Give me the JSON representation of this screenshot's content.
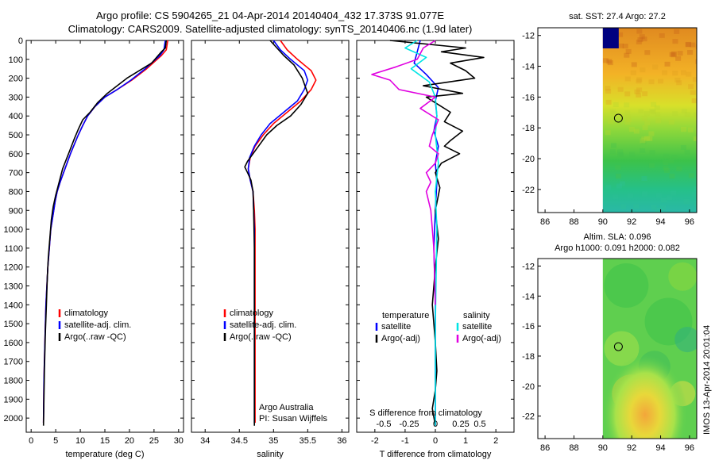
{
  "header": {
    "line1": "Argo profile: CS 5904265_21 04-Apr-2014 20140404_432 17.373S 91.077E",
    "line2": "Climatology: CARS2009. Satellite-adjusted climatology: synTS_20140406.nc (1.9d later)"
  },
  "colors": {
    "climatology": "#ff0000",
    "satellite": "#0000ff",
    "argo": "#000000",
    "sat_diff_s": "#00e5e5",
    "argo_diff_s": "#e000e0"
  },
  "chart_data": [
    {
      "type": "line",
      "name": "temperature-profile",
      "xlabel": "temperature (deg C)",
      "ylabel": "",
      "xlim": [
        -1,
        31
      ],
      "ylim": [
        2075,
        0
      ],
      "xticks": [
        0,
        5,
        10,
        15,
        20,
        25,
        30
      ],
      "yticks": [
        0,
        100,
        200,
        300,
        400,
        500,
        600,
        700,
        800,
        900,
        1000,
        1100,
        1200,
        1300,
        1400,
        1500,
        1600,
        1700,
        1800,
        1900,
        2000
      ],
      "legend": {
        "position": "center-right",
        "entries": [
          "climatology",
          "satellite-adj. clim.",
          "Argo(..raw -QC)"
        ]
      },
      "series": [
        {
          "name": "climatology",
          "color": "#ff0000",
          "x": [
            27.8,
            27.5,
            26.5,
            23.5,
            20.5,
            17.5,
            15.0,
            13.0,
            11.5,
            10.5,
            9.6,
            8.8,
            8.0,
            7.3,
            6.6,
            5.9,
            5.3,
            4.9,
            4.6,
            4.3,
            4.0,
            3.7,
            3.4,
            3.2,
            3.0,
            2.8,
            2.6,
            2.5
          ],
          "y": [
            0,
            50,
            80,
            150,
            210,
            260,
            300,
            350,
            400,
            450,
            500,
            550,
            600,
            650,
            700,
            750,
            800,
            850,
            900,
            950,
            1000,
            1100,
            1200,
            1300,
            1400,
            1600,
            1800,
            2025
          ]
        },
        {
          "name": "satellite-adj. clim.",
          "color": "#0000ff",
          "x": [
            27.3,
            27.0,
            26.2,
            23.2,
            20.3,
            17.5,
            15.0,
            13.0,
            11.5,
            10.5,
            9.6,
            8.8,
            8.0,
            7.3,
            6.6,
            5.9,
            5.3,
            4.9,
            4.6,
            4.3,
            4.0,
            3.7,
            3.4,
            3.2,
            3.0,
            2.8,
            2.6,
            2.5
          ],
          "y": [
            0,
            50,
            80,
            150,
            210,
            260,
            300,
            350,
            400,
            450,
            500,
            550,
            600,
            650,
            700,
            750,
            800,
            850,
            900,
            950,
            1000,
            1100,
            1200,
            1300,
            1400,
            1600,
            1800,
            2025
          ]
        },
        {
          "name": "Argo(..raw -QC)",
          "color": "#000000",
          "x": [
            27.5,
            27.3,
            26.5,
            24.5,
            22.0,
            19.5,
            17.5,
            15.5,
            13.5,
            12.0,
            10.5,
            9.6,
            8.8,
            7.9,
            7.0,
            6.4,
            5.9,
            5.4,
            5.0,
            4.5,
            4.1,
            3.8,
            3.5,
            3.3,
            3.1,
            2.9,
            2.7,
            2.6,
            2.5
          ],
          "y": [
            0,
            40,
            60,
            120,
            160,
            200,
            240,
            280,
            330,
            380,
            420,
            470,
            520,
            580,
            640,
            680,
            730,
            780,
            820,
            880,
            950,
            1050,
            1150,
            1250,
            1400,
            1550,
            1750,
            1900,
            2040
          ]
        }
      ]
    },
    {
      "type": "line",
      "name": "salinity-profile",
      "xlabel": "salinity",
      "ylabel": "",
      "xlim": [
        33.8,
        36.1
      ],
      "ylim": [
        2075,
        0
      ],
      "xticks": [
        34,
        34.5,
        35,
        35.5,
        36
      ],
      "legend": {
        "position": "center-right",
        "entries": [
          "climatology",
          "satellite-adj. clim.",
          "Argo(..raw -QC)"
        ]
      },
      "annotations": [
        "Argo Australia",
        "PI: Susan Wijffels"
      ],
      "series": [
        {
          "name": "climatology",
          "color": "#ff0000",
          "x": [
            35.1,
            35.2,
            35.35,
            35.55,
            35.62,
            35.55,
            35.4,
            35.2,
            35.0,
            34.85,
            34.73,
            34.66,
            34.63,
            34.66,
            34.7,
            34.72,
            34.73,
            34.73,
            34.73,
            34.73,
            34.73
          ],
          "y": [
            0,
            50,
            100,
            160,
            210,
            260,
            320,
            380,
            440,
            500,
            560,
            620,
            680,
            740,
            800,
            900,
            1000,
            1200,
            1500,
            1800,
            2025
          ]
        },
        {
          "name": "satellite-adj. clim.",
          "color": "#0000ff",
          "x": [
            35.0,
            35.1,
            35.25,
            35.45,
            35.5,
            35.45,
            35.35,
            35.15,
            34.95,
            34.82,
            34.72,
            34.65,
            34.63,
            34.66,
            34.7,
            34.71,
            34.72,
            34.72,
            34.72,
            34.72,
            34.72
          ],
          "y": [
            0,
            50,
            100,
            160,
            210,
            260,
            320,
            380,
            440,
            500,
            560,
            620,
            680,
            740,
            800,
            900,
            1000,
            1200,
            1500,
            1800,
            2025
          ]
        },
        {
          "name": "Argo(..raw -QC)",
          "color": "#000000",
          "x": [
            34.95,
            35.05,
            35.15,
            35.3,
            35.42,
            35.5,
            35.4,
            35.25,
            35.05,
            34.9,
            34.78,
            34.68,
            34.62,
            34.58,
            34.62,
            34.67,
            34.7,
            34.71,
            34.72,
            34.72,
            34.72,
            34.72
          ],
          "y": [
            0,
            40,
            80,
            130,
            200,
            280,
            340,
            400,
            450,
            500,
            560,
            610,
            640,
            670,
            700,
            740,
            800,
            900,
            1100,
            1400,
            1800,
            2040
          ]
        }
      ]
    },
    {
      "type": "line",
      "name": "difference-profile",
      "xlabel": "T difference from climatology",
      "xlabel_top": "S difference from climatology",
      "xlim": [
        -2.6,
        2.6
      ],
      "ylim": [
        2075,
        0
      ],
      "xticks": [
        -2,
        -1,
        0,
        1,
        2
      ],
      "xticks_s_labels": [
        "-0.5",
        "-0.25",
        "0",
        "0.25",
        "0.5"
      ],
      "xticks_s_pos": [
        -2,
        -1,
        0,
        1,
        2
      ],
      "legend": {
        "position": "center",
        "groups": [
          "temperature",
          "salinity"
        ],
        "entries": [
          "satellite",
          "Argo(-adj)",
          "satellite",
          "Argo(-adj)"
        ]
      },
      "series": [
        {
          "name": "satellite",
          "color": "#0000ff",
          "x": [
            -0.5,
            -0.6,
            -0.7,
            -0.3,
            0.1,
            0.0,
            0.05,
            -0.05,
            0.1,
            0.0,
            0.05,
            0.0,
            -0.05,
            0.0,
            0.0,
            0.0,
            0.0
          ],
          "y": [
            0,
            60,
            120,
            180,
            250,
            320,
            400,
            480,
            560,
            650,
            750,
            900,
            1100,
            1400,
            1700,
            1950,
            2040
          ]
        },
        {
          "name": "Argo(-adj)",
          "color": "#000000",
          "x": [
            -1.5,
            1.0,
            0.2,
            1.6,
            0.5,
            1.0,
            1.3,
            -0.4,
            0.9,
            -0.3,
            0.0,
            0.5,
            0.3,
            0.9,
            0.5,
            0.3,
            0.8,
            0.2,
            0.0,
            0.15,
            0.0,
            0.1,
            0.0,
            -0.1,
            0.0,
            0.05,
            0.0,
            -0.1,
            0.0
          ],
          "y": [
            0,
            40,
            60,
            90,
            120,
            160,
            200,
            240,
            280,
            300,
            330,
            380,
            430,
            480,
            530,
            560,
            600,
            650,
            700,
            780,
            900,
            1050,
            1200,
            1400,
            1600,
            1750,
            1850,
            1950,
            2040
          ]
        },
        {
          "name": "satellite",
          "color": "#00e5e5",
          "x": [
            -0.6,
            -1.0,
            -0.3,
            -0.8,
            -0.2,
            0.0,
            0.05,
            0.0,
            0.1,
            0.0,
            0.05,
            0.0,
            0.0
          ],
          "y": [
            0,
            40,
            90,
            150,
            220,
            300,
            400,
            500,
            650,
            800,
            1000,
            1500,
            2040
          ]
        },
        {
          "name": "Argo(-adj)",
          "color": "#e000e0",
          "x": [
            0.0,
            -0.4,
            -0.6,
            -1.3,
            -2.1,
            -1.5,
            -1.2,
            0.0,
            -0.5,
            0.1,
            -0.1,
            -0.2,
            0.1,
            0.0,
            -0.3,
            -0.15,
            -0.3,
            -0.15,
            -0.05,
            0.0
          ],
          "y": [
            0,
            40,
            100,
            140,
            180,
            210,
            260,
            300,
            360,
            420,
            500,
            560,
            600,
            650,
            700,
            750,
            800,
            900,
            1100,
            1400
          ]
        }
      ]
    },
    {
      "type": "heatmap",
      "name": "sst-map",
      "title": "sat. SST: 27.4  Argo: 27.2",
      "xlim": [
        85.5,
        96.5
      ],
      "ylim": [
        -23.5,
        -11.5
      ],
      "xticks": [
        86,
        88,
        90,
        92,
        94,
        96
      ],
      "yticks": [
        -12,
        -14,
        -16,
        -18,
        -20,
        -22
      ],
      "data_extent_lon": [
        90,
        96.5
      ],
      "marker": {
        "lon": 91.077,
        "lat": -17.373
      }
    },
    {
      "type": "heatmap",
      "name": "sla-map",
      "title": "Altim. SLA: 0.096",
      "subtitle": "Argo h1000: 0.091  h2000: 0.082",
      "xlim": [
        85.5,
        96.5
      ],
      "ylim": [
        -23.5,
        -11.5
      ],
      "xticks": [
        86,
        88,
        90,
        92,
        94,
        96
      ],
      "yticks": [
        -12,
        -14,
        -16,
        -18,
        -20,
        -22
      ],
      "data_extent_lon": [
        90,
        96.5
      ],
      "marker": {
        "lon": 91.077,
        "lat": -17.373
      }
    }
  ],
  "footer": {
    "stamp": "IMOS 13-Apr-2014 20:01:04"
  }
}
